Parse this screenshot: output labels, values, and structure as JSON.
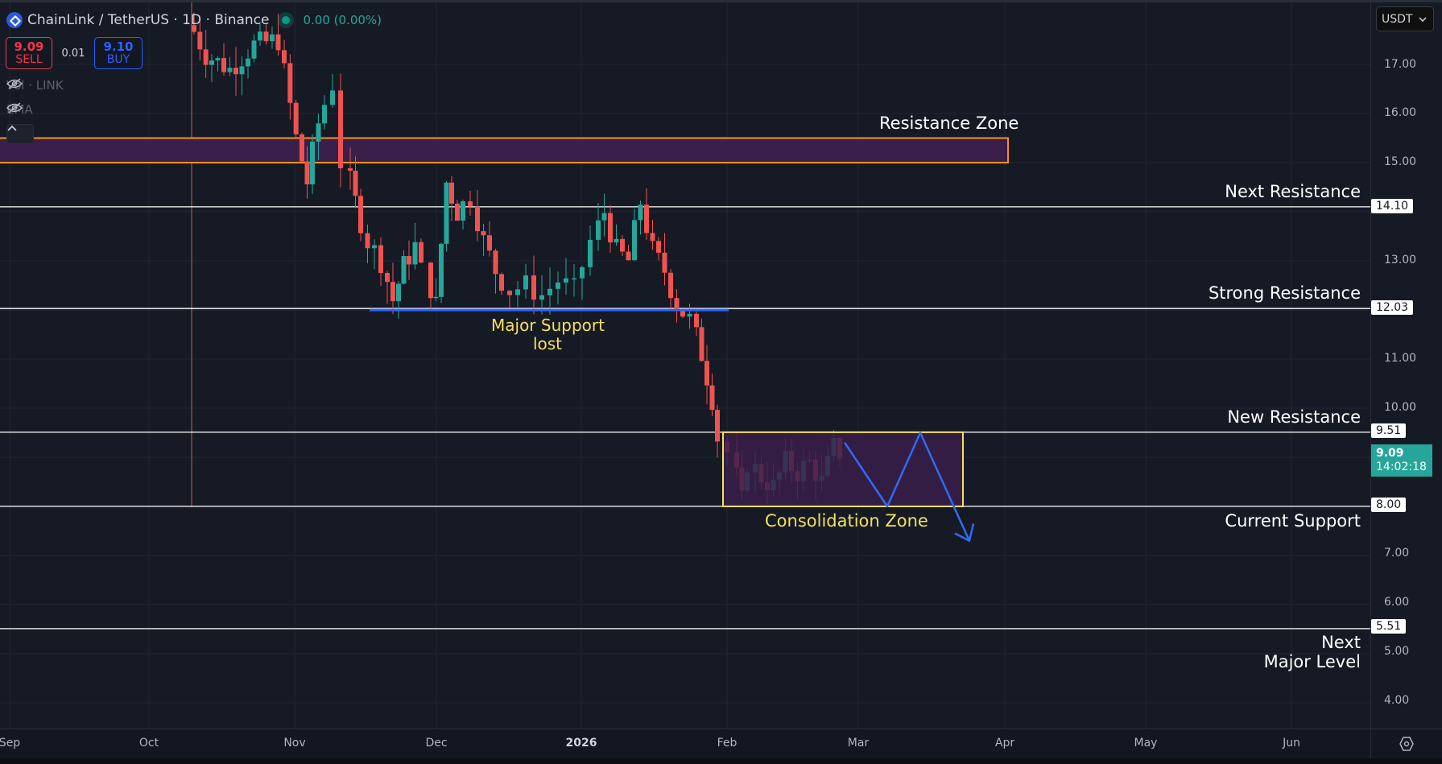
{
  "header": {
    "symbol_title": "ChainLink / TetherUS · 1D · Binance",
    "change": "0.00 (0.00%)",
    "sell": {
      "price": "9.09",
      "label": "SELL"
    },
    "spread": "0.01",
    "buy": {
      "price": "9.10",
      "label": "BUY"
    },
    "indicators": [
      {
        "label": "Vol · LINK",
        "icon": "eye-off-icon"
      },
      {
        "label": "EMA",
        "icon": "eye-off-icon"
      }
    ],
    "collapse_icon": "chevron-up-icon"
  },
  "currency_selector": {
    "value": "USDT",
    "icon": "chevron-down-icon"
  },
  "y_axis": {
    "ticks": [
      "17.00",
      "16.00",
      "15.00",
      "13.00",
      "11.00",
      "10.00",
      "7.00",
      "6.00",
      "5.00",
      "4.00"
    ],
    "level_labels": [
      "14.10",
      "12.03",
      "9.51",
      "8.00",
      "5.51"
    ],
    "last_price": "9.09",
    "countdown": "14:02:18"
  },
  "x_axis": {
    "ticks": [
      "Sep",
      "Oct",
      "Nov",
      "Dec",
      "2026",
      "Feb",
      "Mar",
      "Apr",
      "May",
      "Jun"
    ],
    "settings_icon": "gear-icon"
  },
  "annotations": {
    "resistance_zone": "Resistance Zone",
    "next_resistance": "Next Resistance",
    "strong_resistance": "Strong Resistance",
    "major_support_line1": "Major Support",
    "major_support_line2": "lost",
    "new_resistance": "New Resistance",
    "consolidation_zone": "Consolidation Zone",
    "current_support": "Current Support",
    "next_major_line1": "Next",
    "next_major_line2": "Major Level"
  },
  "colors": {
    "background": "#161a25",
    "up": "#26a69a",
    "down": "#ef5350",
    "resistance_zone_border": "#f7931a",
    "zone_fill": "#3a1f4a",
    "consolidation_border": "#f5e05a",
    "support_line": "#2962ff",
    "projection": "#2f6bf2"
  },
  "chart_data": {
    "type": "candlestick",
    "title": "ChainLink / TetherUS · 1D · Binance",
    "xlabel": "",
    "ylabel": "USDT",
    "x_ticks": [
      "Sep",
      "Oct",
      "Nov",
      "Dec",
      "2026",
      "Feb",
      "Mar",
      "Apr",
      "May",
      "Jun"
    ],
    "ylim": [
      3.5,
      17.8
    ],
    "y_ticks": [
      4,
      5,
      6,
      7,
      10,
      11,
      13,
      15,
      16,
      17
    ],
    "horizontal_levels": [
      {
        "price": 14.1,
        "label": "Next Resistance"
      },
      {
        "price": 12.03,
        "label": "Strong Resistance"
      },
      {
        "price": 9.51,
        "label": "New Resistance"
      },
      {
        "price": 8.0,
        "label": "Current Support"
      },
      {
        "price": 5.51,
        "label": "Next Major Level"
      }
    ],
    "zones": [
      {
        "label": "Resistance Zone",
        "low": 15.0,
        "high": 15.5,
        "x_end": "Apr"
      },
      {
        "label": "Consolidation Zone",
        "low": 8.0,
        "high": 9.51,
        "x_start": "Feb",
        "x_end": "mid Mar"
      }
    ],
    "support_line": {
      "label": "Major Support lost",
      "price": 12.03,
      "x_start": "late Nov",
      "x_end": "Feb"
    },
    "last_price": 9.09,
    "approx_closes": [
      {
        "date": "Oct",
        "close": 17.5
      },
      {
        "date": "Nov",
        "close": 15.8
      },
      {
        "date": "mid Nov",
        "close": 13.3
      },
      {
        "date": "late Nov",
        "close": 12.2
      },
      {
        "date": "early Dec",
        "close": 14.5
      },
      {
        "date": "mid Dec",
        "close": 12.4
      },
      {
        "date": "late Dec",
        "close": 12.3
      },
      {
        "date": "early Jan",
        "close": 14.0
      },
      {
        "date": "mid Jan",
        "close": 13.1
      },
      {
        "date": "late Jan",
        "close": 11.8
      },
      {
        "date": "Feb",
        "close": 8.0
      },
      {
        "date": "mid Feb",
        "close": 8.7
      },
      {
        "date": "late Feb",
        "close": 9.09
      }
    ],
    "projection": [
      {
        "date": "late Feb",
        "price": 9.3
      },
      {
        "date": "early Mar",
        "price": 8.0
      },
      {
        "date": "mid Mar",
        "price": 9.5
      },
      {
        "date": "late Mar",
        "price": 7.3
      }
    ]
  }
}
